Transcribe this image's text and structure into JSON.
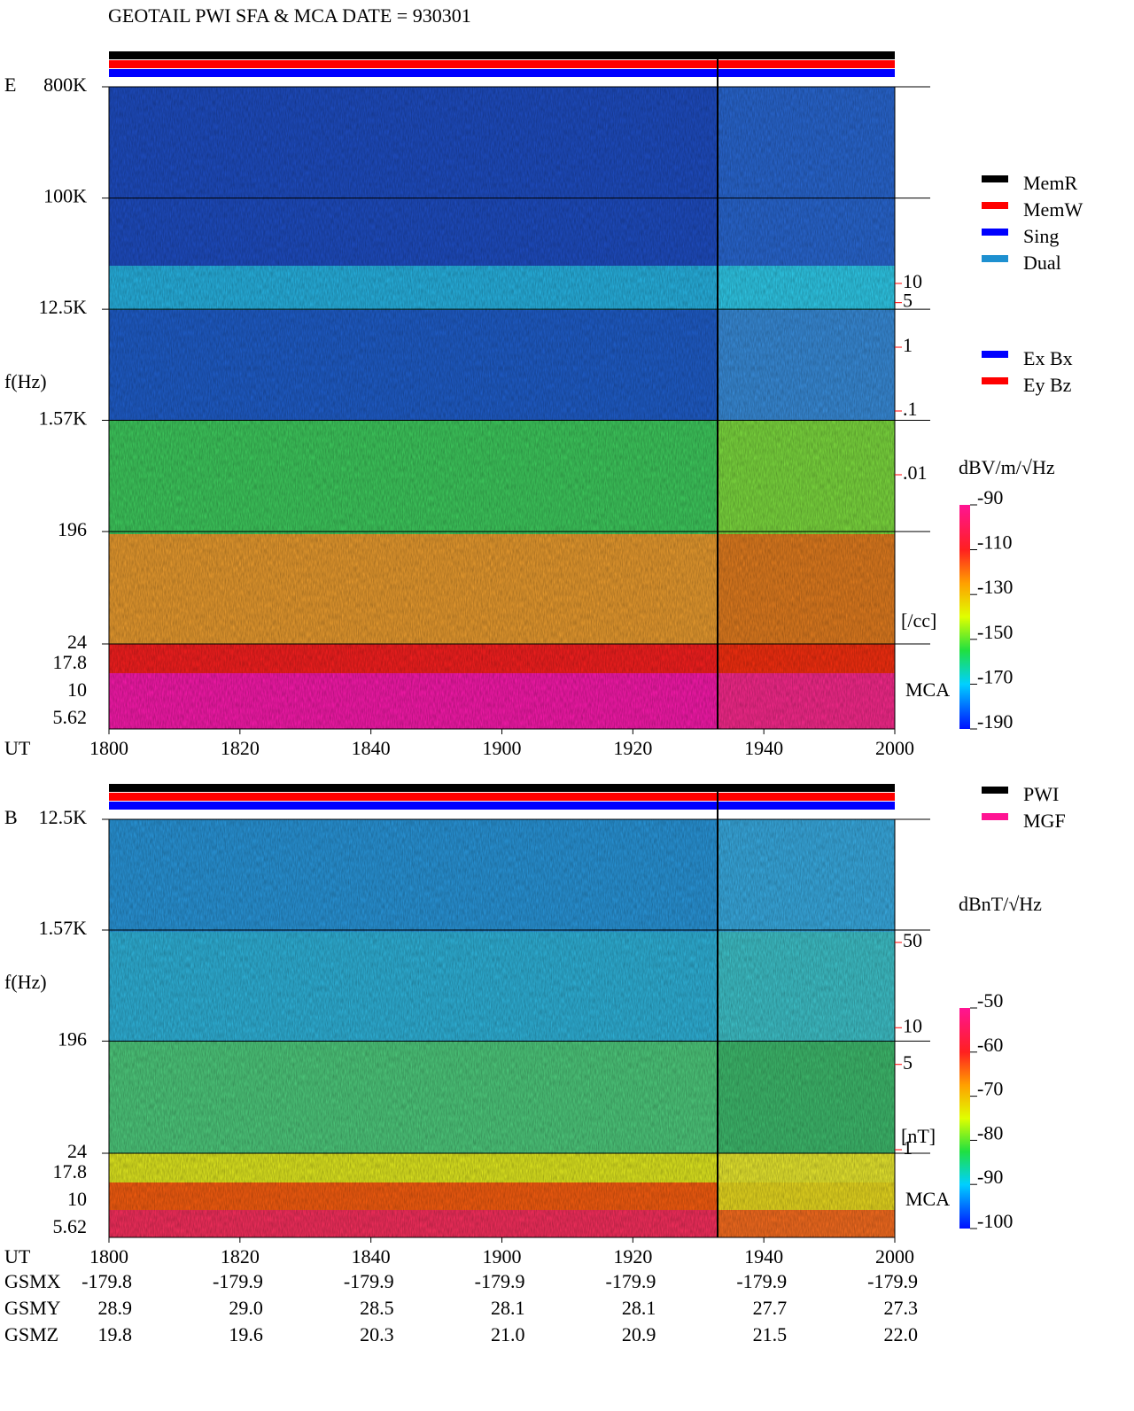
{
  "title": "GEOTAIL  PWI SFA & MCA   DATE = 930301",
  "chart_data": [
    {
      "type": "spectrogram",
      "panel_label": "E",
      "y_label": "f(Hz)",
      "x_label": "UT",
      "xlim": [
        0,
        120
      ],
      "xticks": [
        {
          "value": 0,
          "label": "1800"
        },
        {
          "value": 20,
          "label": "1820"
        },
        {
          "value": 40,
          "label": "1840"
        },
        {
          "value": 60,
          "label": "1900"
        },
        {
          "value": 80,
          "label": "1920"
        },
        {
          "value": 100,
          "label": "1940"
        },
        {
          "value": 120,
          "label": "2000"
        }
      ],
      "log_y": true,
      "ylim": [
        24,
        800000
      ],
      "yticks": [
        {
          "value": 800000,
          "label": "800K"
        },
        {
          "value": 100000,
          "label": "100K"
        },
        {
          "value": 12500,
          "label": "12.5K"
        },
        {
          "value": 1570,
          "label": "1.57K"
        },
        196,
        24
      ],
      "mca_label": "MCA",
      "mca_ticks": [
        17.8,
        10,
        5.62
      ],
      "y2_log": true,
      "y2lim": [
        0.01,
        10
      ],
      "y2_color": "#ff0000",
      "y2_label": "[/cc]",
      "y2ticks": [
        10,
        5,
        1,
        {
          "value": 0.1,
          "label": ".1"
        },
        {
          "value": 0.01,
          "label": ".01"
        }
      ],
      "colorbar_label": "dBV/m/√Hz",
      "colorbar_lim": [
        -190,
        -90
      ],
      "colorbar_ticks": [
        -90,
        -110,
        -130,
        -150,
        -170,
        -190
      ],
      "legend": [
        {
          "name": "MemR",
          "color": "#000000"
        },
        {
          "name": "MemW",
          "color": "#ff0000"
        },
        {
          "name": "Sing",
          "color": "#0000ff"
        },
        {
          "name": "Dual",
          "color": "#1e90d0"
        }
      ],
      "legend2": [
        {
          "name": "Ex Bx",
          "color": "#0000ff"
        },
        {
          "name": "Ey Bz",
          "color": "#ff0000"
        }
      ]
    },
    {
      "type": "spectrogram",
      "panel_label": "B",
      "y_label": "f(Hz)",
      "x_label": "UT",
      "xlim": [
        0,
        120
      ],
      "xticks": [
        {
          "value": 0,
          "label": "1800"
        },
        {
          "value": 20,
          "label": "1820"
        },
        {
          "value": 40,
          "label": "1840"
        },
        {
          "value": 60,
          "label": "1900"
        },
        {
          "value": 80,
          "label": "1920"
        },
        {
          "value": 100,
          "label": "1940"
        },
        {
          "value": 120,
          "label": "2000"
        }
      ],
      "log_y": true,
      "ylim": [
        24,
        12500
      ],
      "yticks": [
        {
          "value": 12500,
          "label": "12.5K"
        },
        {
          "value": 1570,
          "label": "1.57K"
        },
        196,
        24
      ],
      "mca_label": "MCA",
      "mca_ticks": [
        17.8,
        10,
        5.62
      ],
      "y2_log": true,
      "y2lim": [
        1,
        50
      ],
      "y2_color": "#ff0000",
      "y2_label": "[nT]",
      "y2ticks": [
        50,
        10,
        5,
        1
      ],
      "colorbar_label": "dBnT/√Hz",
      "colorbar_lim": [
        -100,
        -50
      ],
      "colorbar_ticks": [
        -50,
        -60,
        -70,
        -80,
        -90,
        -100
      ],
      "legend": [
        {
          "name": "PWI",
          "color": "#000000"
        },
        {
          "name": "MGF",
          "color": "#ff1493"
        }
      ]
    }
  ],
  "orbit_table": {
    "rows": [
      {
        "label": "GSMX",
        "values": [
          "-179.8",
          "-179.9",
          "-179.9",
          "-179.9",
          "-179.9",
          "-179.9",
          "-179.9"
        ]
      },
      {
        "label": "GSMY",
        "values": [
          "28.9",
          "29.0",
          "28.5",
          "28.1",
          "28.1",
          "27.7",
          "27.3"
        ]
      },
      {
        "label": "GSMZ",
        "values": [
          "19.8",
          "19.6",
          "20.3",
          "21.0",
          "20.9",
          "21.5",
          "22.0"
        ]
      }
    ]
  }
}
